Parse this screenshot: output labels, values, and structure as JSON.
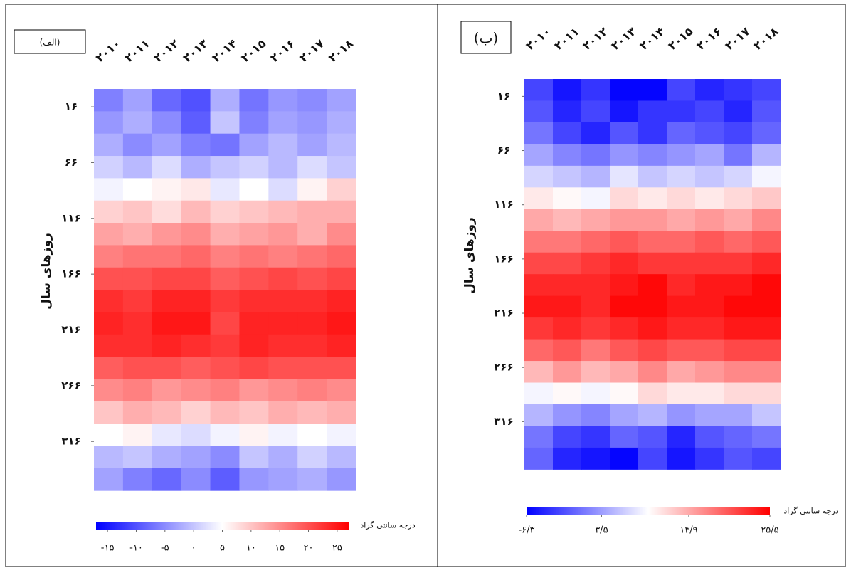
{
  "chart_data": [
    {
      "type": "heatmap",
      "panel_label": "(الف)",
      "ylabel": "روزهای سال",
      "colorbar_label": "درجه سانتی گراد",
      "categories": [
        "۲۰۱۰",
        "۲۰۱۱",
        "۲۰۱۲",
        "۲۰۱۳",
        "۲۰۱۴",
        "۲۰۱۵",
        "۲۰۱۶",
        "۲۰۱۷",
        "۲۰۱۸"
      ],
      "y": [
        10,
        30,
        50,
        70,
        90,
        110,
        130,
        150,
        170,
        190,
        210,
        230,
        250,
        270,
        290,
        310,
        330,
        350
      ],
      "values": [
        [
          -6,
          -3,
          -8,
          -10,
          -2,
          -7,
          -4,
          -5,
          -3
        ],
        [
          -4,
          -2,
          -5,
          -9,
          0,
          -6,
          -3,
          -4,
          -2
        ],
        [
          -2,
          -5,
          -3,
          -6,
          -7,
          -3,
          -1,
          -3,
          -1
        ],
        [
          1,
          -1,
          2,
          -2,
          0,
          1,
          -1,
          2,
          0
        ],
        [
          4,
          5,
          6,
          7,
          3,
          5,
          2,
          6,
          9
        ],
        [
          9,
          10,
          8,
          11,
          9,
          10,
          11,
          12,
          12
        ],
        [
          13,
          12,
          14,
          15,
          12,
          13,
          14,
          12,
          15
        ],
        [
          16,
          17,
          17,
          18,
          16,
          17,
          16,
          17,
          18
        ],
        [
          20,
          20,
          21,
          21,
          19,
          20,
          21,
          20,
          21
        ],
        [
          23,
          22,
          24,
          24,
          22,
          23,
          23,
          23,
          24
        ],
        [
          24,
          23,
          25,
          25,
          21,
          24,
          24,
          24,
          25
        ],
        [
          23,
          23,
          24,
          23,
          22,
          24,
          23,
          23,
          24
        ],
        [
          19,
          20,
          20,
          19,
          20,
          21,
          20,
          20,
          20
        ],
        [
          15,
          16,
          14,
          15,
          16,
          14,
          15,
          16,
          15
        ],
        [
          10,
          12,
          11,
          9,
          11,
          10,
          12,
          11,
          12
        ],
        [
          5,
          6,
          3,
          2,
          4,
          6,
          4,
          5,
          4
        ],
        [
          -1,
          0,
          -2,
          -3,
          -5,
          0,
          -2,
          1,
          -1
        ],
        [
          -3,
          -6,
          -8,
          -5,
          -9,
          -4,
          -3,
          -2,
          -4
        ]
      ],
      "ylim": [
        0,
        365
      ],
      "yticks": [
        {
          "value": 16,
          "label": "۱۶"
        },
        {
          "value": 66,
          "label": "۶۶"
        },
        {
          "value": 116,
          "label": "۱۱۶"
        },
        {
          "value": 166,
          "label": "۱۶۶"
        },
        {
          "value": 216,
          "label": "۲۱۶"
        },
        {
          "value": 266,
          "label": "۲۶۶"
        },
        {
          "value": 316,
          "label": "۳۱۶"
        }
      ],
      "clim": [
        -17,
        27
      ],
      "colorbar_ticks": [
        {
          "value": -15,
          "label": "-۱۵"
        },
        {
          "value": -10,
          "label": "-۱۰"
        },
        {
          "value": -5,
          "label": "-۵"
        },
        {
          "value": 0,
          "label": "۰"
        },
        {
          "value": 5,
          "label": "۵"
        },
        {
          "value": 10,
          "label": "۱۰"
        },
        {
          "value": 15,
          "label": "۱۵"
        },
        {
          "value": 20,
          "label": "۲۰"
        },
        {
          "value": 25,
          "label": "۲۵"
        }
      ],
      "colors": [
        "#0000ff",
        "#ffffff",
        "#ff0000"
      ]
    },
    {
      "type": "heatmap",
      "panel_label": "(ب)",
      "ylabel": "روزهای سال",
      "colorbar_label": "درجه سانتی گراد",
      "categories": [
        "۲۰۱۰",
        "۲۰۱۱",
        "۲۰۱۲",
        "۲۰۱۳",
        "۲۰۱۴",
        "۲۰۱۵",
        "۲۰۱۶",
        "۲۰۱۷",
        "۲۰۱۸"
      ],
      "y": [
        10,
        30,
        50,
        70,
        90,
        110,
        130,
        150,
        170,
        190,
        210,
        230,
        250,
        270,
        290,
        310,
        330,
        350
      ],
      "values": [
        [
          -2,
          -5,
          -3,
          -6,
          -6,
          -2,
          -4,
          -3,
          -2
        ],
        [
          -1,
          -4,
          -2,
          -5,
          -3,
          -3,
          -2,
          -4,
          -1
        ],
        [
          1,
          -2,
          -4,
          -1,
          -3,
          0,
          -1,
          -2,
          0
        ],
        [
          4,
          2,
          1,
          3,
          2,
          3,
          4,
          1,
          5
        ],
        [
          7,
          6,
          5,
          8,
          6,
          7,
          6,
          7,
          9
        ],
        [
          11,
          10,
          9,
          12,
          11,
          12,
          11,
          12,
          13
        ],
        [
          15,
          14,
          15,
          16,
          16,
          15,
          16,
          15,
          17
        ],
        [
          18,
          18,
          19,
          20,
          19,
          19,
          20,
          19,
          20
        ],
        [
          21,
          21,
          22,
          23,
          22,
          22,
          22,
          22,
          23
        ],
        [
          23,
          23,
          23,
          24,
          25,
          23,
          24,
          24,
          25
        ],
        [
          24,
          24,
          23,
          25,
          25,
          24,
          24,
          25,
          25
        ],
        [
          22,
          23,
          22,
          23,
          24,
          23,
          23,
          24,
          24
        ],
        [
          19,
          20,
          18,
          20,
          21,
          20,
          20,
          21,
          21
        ],
        [
          14,
          16,
          14,
          15,
          17,
          15,
          16,
          17,
          17
        ],
        [
          9,
          10,
          9,
          10,
          12,
          11,
          11,
          12,
          12
        ],
        [
          5,
          3,
          2,
          4,
          5,
          3,
          4,
          4,
          6
        ],
        [
          1,
          -2,
          -3,
          0,
          -1,
          -4,
          -1,
          0,
          1
        ],
        [
          0,
          -4,
          -5,
          -6,
          -2,
          -5,
          -3,
          -1,
          -2
        ]
      ],
      "ylim": [
        0,
        365
      ],
      "yticks": [
        {
          "value": 16,
          "label": "۱۶"
        },
        {
          "value": 66,
          "label": "۶۶"
        },
        {
          "value": 116,
          "label": "۱۱۶"
        },
        {
          "value": 166,
          "label": "۱۶۶"
        },
        {
          "value": 216,
          "label": "۲۱۶"
        },
        {
          "value": 266,
          "label": "۲۶۶"
        },
        {
          "value": 316,
          "label": "۳۱۶"
        }
      ],
      "clim": [
        -6.3,
        25.5
      ],
      "colorbar_ticks": [
        {
          "value": -6.3,
          "label": "-۶/۳"
        },
        {
          "value": 3.5,
          "label": "۳/۵"
        },
        {
          "value": 14.9,
          "label": "۱۴/۹"
        },
        {
          "value": 25.5,
          "label": "۲۵/۵"
        }
      ],
      "colors": [
        "#0000ff",
        "#ffffff",
        "#ff0000"
      ]
    }
  ]
}
